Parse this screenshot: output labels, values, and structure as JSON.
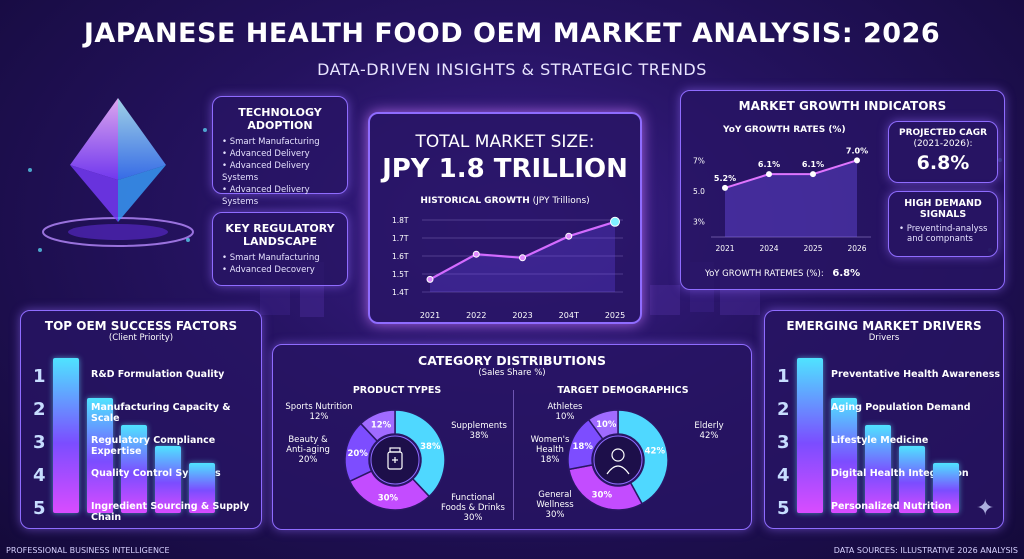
{
  "header": {
    "title": "JAPANESE HEALTH FOOD OEM MARKET ANALYSIS: 2026",
    "subtitle": "DATA-DRIVEN INSIGHTS & STRATEGIC TRENDS"
  },
  "tech": {
    "title_line1": "TECHNOLOGY",
    "title_line2": "ADOPTION",
    "items": [
      "Smart Manufacturing",
      "Advanced Delivery",
      "Advanced Delivery Systems",
      "Advanced Delivery Systems"
    ]
  },
  "regulatory": {
    "title_line1": "KEY REGULATORY",
    "title_line2": "LANDSCAPE",
    "items": [
      "Smart Manufacturing",
      "Advanced Decovery"
    ]
  },
  "market_size": {
    "title": "TOTAL MARKET SIZE:",
    "value": "JPY 1.8 TRILLION",
    "chart_title": "HISTORICAL GROWTH",
    "chart_unit": "(JPY Trillions)"
  },
  "growth": {
    "title": "MARKET GROWTH INDICATORS",
    "chart_title": "YoY GROWTH RATES (%)",
    "cagr_title_line1": "PROJECTED CAGR",
    "cagr_title_line2": "(2021-2026):",
    "cagr_value": "6.8%",
    "demand_title_line1": "HIGH DEMAND",
    "demand_title_line2": "SIGNALS",
    "demand_items": [
      "Preventind-analyss",
      "and compnants"
    ],
    "footer_label": "YoY GROWTH RATEMES (%):",
    "footer_value": "6.8%"
  },
  "oem_factors": {
    "title": "TOP OEM SUCCESS FACTORS",
    "subtitle": "(Client Priority)",
    "items": [
      {
        "rank": "1",
        "label": "R&D Formulation Quality"
      },
      {
        "rank": "2",
        "label": "Manufacturing Capacity & Scale"
      },
      {
        "rank": "3",
        "label": "Regulatory Compliance Expertise"
      },
      {
        "rank": "4",
        "label": "Quality Control Systems"
      },
      {
        "rank": "5",
        "label": "Ingredient Sourcing & Supply Chain"
      }
    ]
  },
  "categories": {
    "title": "CATEGORY DISTRIBUTIONS",
    "subtitle": "(Sales Share %)",
    "product_title": "PRODUCT TYPES",
    "demo_title": "TARGET DEMOGRAPHICS",
    "product_labels": [
      {
        "line1": "Sports Nutrition",
        "line2": "12%"
      },
      {
        "line1": "Beauty &",
        "line2": "Anti-aging",
        "line3": "20%"
      },
      {
        "line1": "Supplements",
        "line2": "38%"
      },
      {
        "line1": "Functional",
        "line2": "Foods & Drinks",
        "line3": "30%"
      }
    ],
    "demo_labels": [
      {
        "line1": "Athletes",
        "line2": "10%"
      },
      {
        "line1": "Women's",
        "line2": "Health",
        "line3": "18%"
      },
      {
        "line1": "Elderly",
        "line2": "42%"
      },
      {
        "line1": "General",
        "line2": "Wellness",
        "line3": "30%"
      }
    ]
  },
  "drivers": {
    "title": "EMERGING MARKET DRIVERS",
    "subtitle": "Drivers",
    "items": [
      {
        "rank": "1",
        "label": "Preventative Health Awareness"
      },
      {
        "rank": "2",
        "label": "Aging Population Demand"
      },
      {
        "rank": "3",
        "label": "Lifestyle Medicine"
      },
      {
        "rank": "4",
        "label": "Digital Health Integration"
      },
      {
        "rank": "5",
        "label": "Personalized Nutrition"
      }
    ]
  },
  "footer": {
    "left": "PROFESSIONAL BUSINESS INTELLIGENCE",
    "right": "DATA SOURCES: ILLUSTRATIVE 2026 ANALYSIS"
  },
  "colors": {
    "cyan": "#4fe3ff",
    "magenta": "#d94cff",
    "purple": "#7b4dff",
    "border": "#8f6cff"
  },
  "chart_data": [
    {
      "type": "line",
      "title": "HISTORICAL GROWTH (JPY Trillions)",
      "x": [
        "2021",
        "2022",
        "2023",
        "204T",
        "2025"
      ],
      "values": [
        1.47,
        1.61,
        1.59,
        1.71,
        1.79
      ],
      "yticks": [
        "1.4T",
        "1.5T",
        "1.6T",
        "1.7T",
        "1.8T"
      ],
      "ylim": [
        1.4,
        1.8
      ]
    },
    {
      "type": "line",
      "title": "YoY GROWTH RATES (%)",
      "x": [
        "2021",
        "2024",
        "2025",
        "2026"
      ],
      "values": [
        5.2,
        6.1,
        6.1,
        7.0
      ],
      "point_labels": [
        "5.2%",
        "6.1%",
        "6.1%",
        "7.0%"
      ],
      "yticks": [
        "3%",
        "5.0",
        "7%"
      ],
      "ylim": [
        2,
        8
      ]
    },
    {
      "type": "bar",
      "title": "TOP OEM SUCCESS FACTORS",
      "categories": [
        "R&D Formulation Quality",
        "Manufacturing Capacity & Scale",
        "Regulatory Compliance Expertise",
        "Quality Control Systems",
        "Ingredient Sourcing & Supply Chain"
      ],
      "values": [
        100,
        74,
        57,
        43,
        32
      ]
    },
    {
      "type": "pie",
      "title": "PRODUCT TYPES",
      "categories": [
        "Supplements",
        "Functional Foods & Drinks",
        "Beauty & Anti-aging",
        "Sports Nutrition"
      ],
      "values": [
        38,
        30,
        20,
        12
      ],
      "slice_labels": [
        "38%",
        "30%",
        "20%",
        "12%"
      ]
    },
    {
      "type": "pie",
      "title": "TARGET DEMOGRAPHICS",
      "categories": [
        "Elderly",
        "General Wellness",
        "Women's Health",
        "Athletes"
      ],
      "values": [
        42,
        30,
        18,
        10
      ],
      "slice_labels": [
        "42%",
        "30%",
        "18%",
        "10%"
      ]
    },
    {
      "type": "bar",
      "title": "EMERGING MARKET DRIVERS",
      "categories": [
        "Preventative Health Awareness",
        "Aging Population Demand",
        "Lifestyle Medicine",
        "Digital Health Integration",
        "Personalized Nutrition"
      ],
      "values": [
        100,
        74,
        57,
        43,
        32
      ]
    }
  ]
}
